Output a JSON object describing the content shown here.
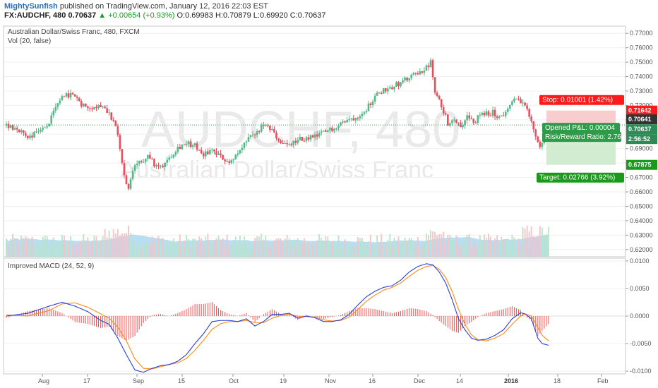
{
  "header": {
    "author": "MightySunfish",
    "published_text": "published on TradingView.com, January 12, 2016 22:03 EST",
    "symbol": "FX:AUDCHF, 480",
    "last": "0.70637",
    "change": "▲ +0.00654 (+0.93%)",
    "open": "O:0.69983",
    "high": "H:0.70879",
    "low": "L:0.69920",
    "close": "C:0.70637"
  },
  "chart_data": [
    {
      "type": "candlestick",
      "title": "Australian Dollar/Swiss Franc, 480, FXCM",
      "indicator_label": "Vol (20, false)",
      "watermark_symbol": "AUDCHF, 480",
      "watermark_name": "Australian Dollar/Swiss Franc",
      "ylim": [
        0.615,
        0.775
      ],
      "y_ticks": [
        "0.77000",
        "0.76000",
        "0.75000",
        "0.74000",
        "0.73000",
        "0.72000",
        "0.71000",
        "0.70000",
        "0.69000",
        "0.68000",
        "0.67000",
        "0.66000",
        "0.65000",
        "0.64000",
        "0.63000",
        "0.62000"
      ],
      "x_ticks": [
        "Aug",
        "17",
        "Sep",
        "15",
        "Oct",
        "19",
        "Nov",
        "16",
        "Dec",
        "14",
        "2016",
        "18",
        "Feb"
      ],
      "price_path": [
        [
          0,
          0.706
        ],
        [
          5,
          0.704
        ],
        [
          10,
          0.698
        ],
        [
          15,
          0.702
        ],
        [
          20,
          0.708
        ],
        [
          25,
          0.724
        ],
        [
          30,
          0.728
        ],
        [
          35,
          0.721
        ],
        [
          40,
          0.719
        ],
        [
          45,
          0.72
        ],
        [
          48,
          0.715
        ],
        [
          52,
          0.7
        ],
        [
          55,
          0.67
        ],
        [
          57,
          0.662
        ],
        [
          60,
          0.679
        ],
        [
          63,
          0.68
        ],
        [
          66,
          0.687
        ],
        [
          69,
          0.678
        ],
        [
          72,
          0.677
        ],
        [
          76,
          0.684
        ],
        [
          80,
          0.691
        ],
        [
          84,
          0.694
        ],
        [
          88,
          0.692
        ],
        [
          92,
          0.686
        ],
        [
          96,
          0.689
        ],
        [
          100,
          0.684
        ],
        [
          104,
          0.681
        ],
        [
          108,
          0.686
        ],
        [
          112,
          0.695
        ],
        [
          116,
          0.7
        ],
        [
          120,
          0.706
        ],
        [
          124,
          0.702
        ],
        [
          128,
          0.694
        ],
        [
          132,
          0.692
        ],
        [
          136,
          0.696
        ],
        [
          140,
          0.697
        ],
        [
          144,
          0.698
        ],
        [
          148,
          0.701
        ],
        [
          152,
          0.704
        ],
        [
          156,
          0.708
        ],
        [
          160,
          0.71
        ],
        [
          164,
          0.713
        ],
        [
          168,
          0.718
        ],
        [
          172,
          0.726
        ],
        [
          176,
          0.731
        ],
        [
          180,
          0.733
        ],
        [
          184,
          0.736
        ],
        [
          188,
          0.739
        ],
        [
          192,
          0.742
        ],
        [
          196,
          0.746
        ],
        [
          198,
          0.75
        ],
        [
          200,
          0.728
        ],
        [
          203,
          0.72
        ],
        [
          206,
          0.708
        ],
        [
          209,
          0.711
        ],
        [
          212,
          0.706
        ],
        [
          215,
          0.712
        ],
        [
          218,
          0.708
        ],
        [
          221,
          0.713
        ],
        [
          224,
          0.714
        ],
        [
          227,
          0.715
        ],
        [
          230,
          0.712
        ],
        [
          233,
          0.715
        ],
        [
          236,
          0.722
        ],
        [
          239,
          0.725
        ],
        [
          242,
          0.72
        ],
        [
          245,
          0.708
        ],
        [
          247,
          0.699
        ],
        [
          249,
          0.69
        ],
        [
          251,
          0.699
        ],
        [
          253,
          0.7064
        ]
      ],
      "volume_label": "volume bars (20-period MA shaded)",
      "positions": {
        "stop": {
          "label": "Stop: 0.01001 (1.42%)",
          "price": 0.71642,
          "tag": "0.71642"
        },
        "open_pl": {
          "label": "Opened P&L: 0.00004",
          "tag": "0.70641"
        },
        "last_tag": {
          "tag": "0.70637"
        },
        "time_tag": {
          "tag": "2:56:52"
        },
        "risk_reward": {
          "label": "Risk/Reward Ratio: 2.76"
        },
        "target": {
          "label": "Target: 0.02766 (3.92%)",
          "price": 0.67875,
          "tag": "0.67875"
        },
        "entry_price": 0.70641
      },
      "colors": {
        "up": "#53b987",
        "down": "#eb4d5c",
        "stop_zone": "#f7c4c4",
        "target_zone": "#c9e9c9",
        "stop_tag": "#ff1a1a",
        "target_tag": "#1a9a1a",
        "volume_ma": "#a8d4f2"
      }
    },
    {
      "type": "macd",
      "title": "Improved MACD (24, 52, 9)",
      "ylim": [
        -0.0105,
        0.0105
      ],
      "y_ticks": [
        "0.0100",
        "0.0050",
        "0.0000",
        "-0.0050",
        "-0.0100"
      ],
      "macd_path": [
        [
          0,
          0.0
        ],
        [
          10,
          0.0005
        ],
        [
          20,
          0.0018
        ],
        [
          26,
          0.0025
        ],
        [
          32,
          0.0018
        ],
        [
          38,
          0.0008
        ],
        [
          44,
          -0.0008
        ],
        [
          48,
          -0.0015
        ],
        [
          52,
          -0.004
        ],
        [
          56,
          -0.007
        ],
        [
          60,
          -0.0098
        ],
        [
          64,
          -0.0102
        ],
        [
          68,
          -0.0095
        ],
        [
          72,
          -0.009
        ],
        [
          76,
          -0.0088
        ],
        [
          80,
          -0.0082
        ],
        [
          84,
          -0.007
        ],
        [
          88,
          -0.005
        ],
        [
          92,
          -0.0032
        ],
        [
          96,
          -0.001
        ],
        [
          100,
          -0.0008
        ],
        [
          104,
          -0.0008
        ],
        [
          108,
          -0.001
        ],
        [
          112,
          -0.0005
        ],
        [
          116,
          -0.0018
        ],
        [
          120,
          -0.001
        ],
        [
          124,
          0.0003
        ],
        [
          128,
          0.0003
        ],
        [
          132,
          0.0005
        ],
        [
          136,
          -0.0004
        ],
        [
          140,
          0.0
        ],
        [
          144,
          -0.0003
        ],
        [
          148,
          -0.001
        ],
        [
          152,
          -0.001
        ],
        [
          156,
          -0.0007
        ],
        [
          160,
          0.0003
        ],
        [
          164,
          0.002
        ],
        [
          168,
          0.0035
        ],
        [
          172,
          0.0045
        ],
        [
          176,
          0.0052
        ],
        [
          180,
          0.0055
        ],
        [
          184,
          0.0065
        ],
        [
          188,
          0.008
        ],
        [
          192,
          0.009
        ],
        [
          196,
          0.0095
        ],
        [
          199,
          0.0093
        ],
        [
          202,
          0.008
        ],
        [
          205,
          0.006
        ],
        [
          208,
          0.003
        ],
        [
          211,
          -0.0005
        ],
        [
          214,
          -0.0025
        ],
        [
          217,
          -0.004
        ],
        [
          220,
          -0.0044
        ],
        [
          224,
          -0.0042
        ],
        [
          228,
          -0.0035
        ],
        [
          232,
          -0.0025
        ],
        [
          236,
          -0.0005
        ],
        [
          240,
          0.0006
        ],
        [
          242,
          0.0004
        ],
        [
          245,
          -0.0005
        ],
        [
          248,
          -0.004
        ],
        [
          250,
          -0.005
        ],
        [
          253,
          -0.0053
        ]
      ],
      "signal_path": [
        [
          0,
          0.0002
        ],
        [
          10,
          0.0
        ],
        [
          20,
          0.001
        ],
        [
          26,
          0.0022
        ],
        [
          32,
          0.0024
        ],
        [
          38,
          0.0016
        ],
        [
          44,
          0.0004
        ],
        [
          48,
          -0.0004
        ],
        [
          52,
          -0.002
        ],
        [
          56,
          -0.0045
        ],
        [
          60,
          -0.0078
        ],
        [
          64,
          -0.0095
        ],
        [
          68,
          -0.0096
        ],
        [
          72,
          -0.0092
        ],
        [
          76,
          -0.0088
        ],
        [
          80,
          -0.0085
        ],
        [
          84,
          -0.0077
        ],
        [
          88,
          -0.0062
        ],
        [
          92,
          -0.0044
        ],
        [
          96,
          -0.0024
        ],
        [
          100,
          -0.0014
        ],
        [
          104,
          -0.001
        ],
        [
          108,
          -0.001
        ],
        [
          112,
          -0.0008
        ],
        [
          116,
          -0.0012
        ],
        [
          120,
          -0.0012
        ],
        [
          124,
          -0.0004
        ],
        [
          128,
          0.0001
        ],
        [
          132,
          0.0003
        ],
        [
          136,
          0.0
        ],
        [
          140,
          -0.0001
        ],
        [
          144,
          -0.0002
        ],
        [
          148,
          -0.0007
        ],
        [
          152,
          -0.0009
        ],
        [
          156,
          -0.0008
        ],
        [
          160,
          -0.0002
        ],
        [
          164,
          0.0012
        ],
        [
          168,
          0.0027
        ],
        [
          172,
          0.0038
        ],
        [
          176,
          0.0047
        ],
        [
          180,
          0.0052
        ],
        [
          184,
          0.006
        ],
        [
          188,
          0.0072
        ],
        [
          192,
          0.0083
        ],
        [
          196,
          0.009
        ],
        [
          199,
          0.0092
        ],
        [
          202,
          0.0085
        ],
        [
          205,
          0.007
        ],
        [
          208,
          0.0045
        ],
        [
          211,
          0.0012
        ],
        [
          214,
          -0.0015
        ],
        [
          217,
          -0.0034
        ],
        [
          220,
          -0.0043
        ],
        [
          224,
          -0.0045
        ],
        [
          228,
          -0.004
        ],
        [
          232,
          -0.0032
        ],
        [
          236,
          -0.0015
        ],
        [
          240,
          0.0
        ],
        [
          242,
          0.0004
        ],
        [
          245,
          0.0
        ],
        [
          248,
          -0.002
        ],
        [
          250,
          -0.0035
        ],
        [
          253,
          -0.0045
        ]
      ],
      "colors": {
        "macd": "#2b3fd6",
        "signal": "#ff8a1a",
        "hist": "#ff4d4d"
      }
    }
  ]
}
